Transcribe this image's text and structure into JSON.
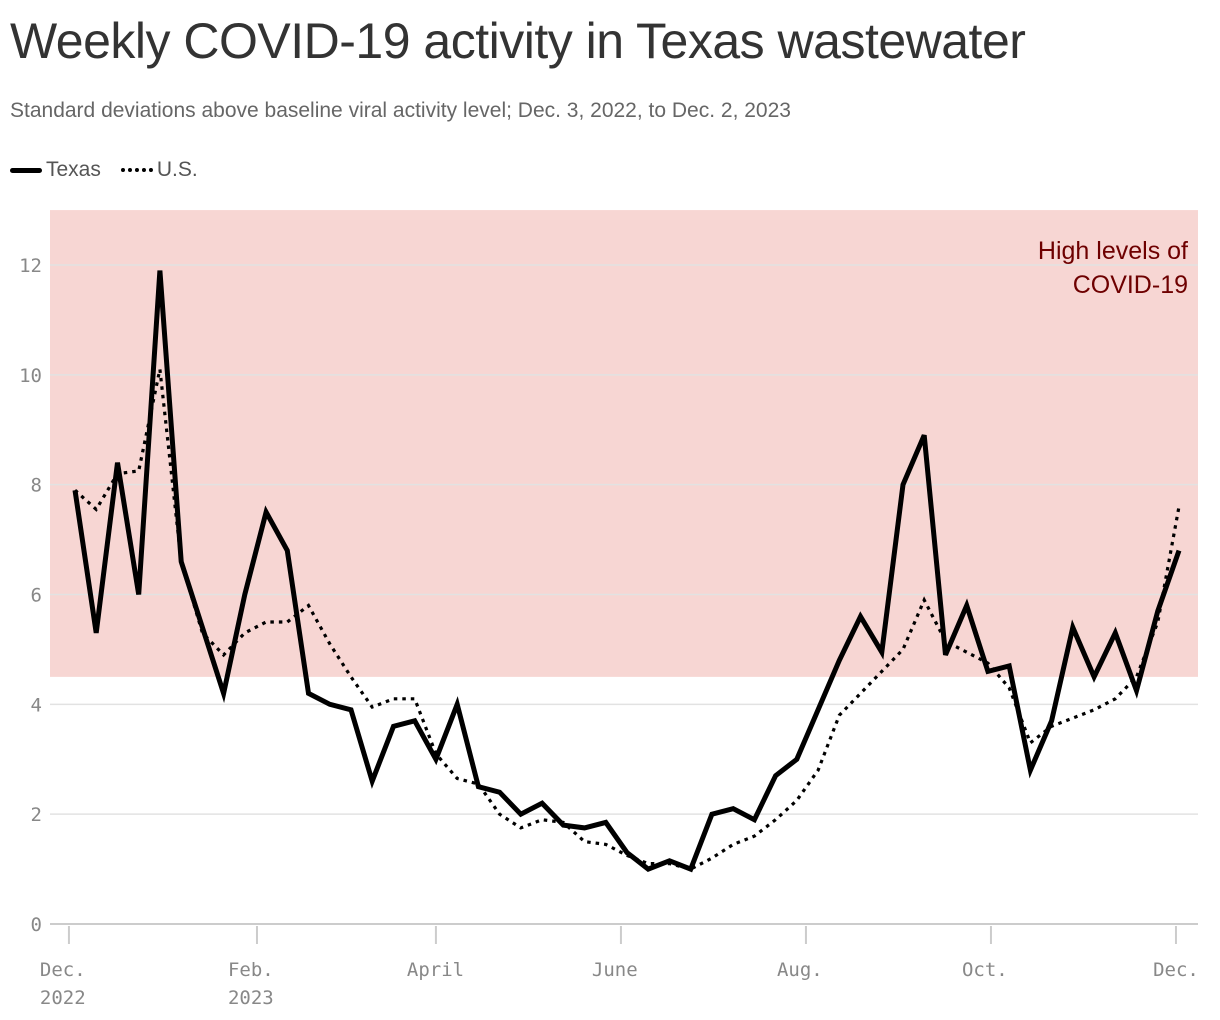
{
  "title": "Weekly COVID-19 activity in Texas wastewater",
  "subtitle": "Standard deviations above baseline viral activity level; Dec. 3, 2022, to Dec. 2, 2023",
  "colors": {
    "band": "#f7d6d3",
    "band_text": "#6e0000",
    "line": "#000000",
    "grid": "#e2e2e2"
  },
  "chart_data": {
    "type": "line",
    "title": "Weekly COVID-19 activity in Texas wastewater",
    "ylim": [
      0,
      13
    ],
    "y_ticks": [
      0,
      2,
      4,
      6,
      8,
      10,
      12
    ],
    "x_start": "2022-12-03",
    "x_end": "2023-12-02",
    "x_ticks": [
      {
        "date": "2022-12-01",
        "label": [
          "Dec.",
          "2022"
        ]
      },
      {
        "date": "2023-02-01",
        "label": [
          "Feb.",
          "2023"
        ]
      },
      {
        "date": "2023-04-01",
        "label": [
          "April"
        ]
      },
      {
        "date": "2023-06-01",
        "label": [
          "June"
        ]
      },
      {
        "date": "2023-08-01",
        "label": [
          "Aug."
        ]
      },
      {
        "date": "2023-10-01",
        "label": [
          "Oct."
        ]
      },
      {
        "date": "2023-12-01",
        "label": [
          "Dec."
        ]
      }
    ],
    "band": {
      "from": 4.5,
      "to": 13,
      "label": [
        "High levels of",
        "COVID-19"
      ]
    },
    "legend_position": "top-left",
    "grid": true,
    "series": [
      {
        "name": "Texas",
        "style": "solid",
        "values": [
          7.9,
          5.3,
          8.4,
          6.0,
          11.9,
          6.6,
          5.4,
          4.2,
          6.0,
          7.5,
          6.8,
          4.2,
          4.0,
          3.9,
          2.6,
          3.6,
          3.7,
          3.0,
          4.0,
          2.5,
          2.4,
          2.0,
          2.2,
          1.8,
          1.75,
          1.85,
          1.3,
          1.0,
          1.15,
          1.0,
          2.0,
          2.1,
          1.9,
          2.7,
          3.0,
          3.9,
          4.8,
          5.6,
          4.95,
          8.0,
          8.9,
          4.9,
          5.8,
          4.6,
          4.7,
          2.8,
          3.7,
          5.4,
          4.5,
          5.3,
          4.25,
          5.7,
          6.8
        ]
      },
      {
        "name": "U.S.",
        "style": "dotted",
        "values": [
          7.9,
          7.55,
          8.2,
          8.25,
          10.1,
          6.6,
          5.3,
          4.9,
          5.3,
          5.5,
          5.5,
          5.8,
          5.1,
          4.5,
          3.95,
          4.1,
          4.1,
          3.1,
          2.65,
          2.55,
          2.0,
          1.75,
          1.9,
          1.85,
          1.5,
          1.45,
          1.25,
          1.1,
          1.1,
          1.0,
          1.2,
          1.45,
          1.6,
          1.9,
          2.25,
          2.8,
          3.8,
          4.2,
          4.6,
          5.0,
          5.9,
          5.15,
          4.95,
          4.75,
          4.3,
          3.3,
          3.6,
          3.75,
          3.9,
          4.1,
          4.5,
          5.5,
          7.6
        ]
      }
    ]
  }
}
